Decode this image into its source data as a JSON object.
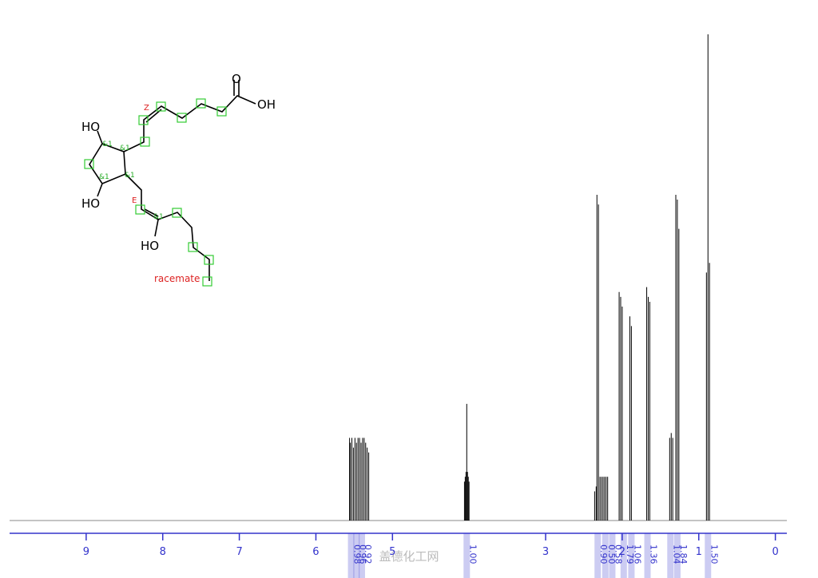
{
  "chart_data": {
    "type": "spectrum",
    "x": [
      5.56,
      5.55,
      5.53,
      5.51,
      5.49,
      5.47,
      5.45,
      5.43,
      5.41,
      5.39,
      5.37,
      5.35,
      5.33,
      5.31,
      4.06,
      4.05,
      4.04,
      4.03,
      4.02,
      4.01,
      4.0,
      2.36,
      2.34,
      2.33,
      2.31,
      2.29,
      2.27,
      2.25,
      2.23,
      2.21,
      2.19,
      2.04,
      2.02,
      2.0,
      1.9,
      1.88,
      1.68,
      1.66,
      1.64,
      1.38,
      1.36,
      1.34,
      1.3,
      1.28,
      1.26,
      0.9,
      0.88,
      0.86
    ],
    "values": [
      17,
      16,
      17,
      15,
      17,
      16,
      17,
      17,
      16,
      17,
      17,
      16,
      15,
      14,
      8,
      9,
      10,
      24,
      10,
      9,
      8,
      6,
      7,
      67,
      65,
      9,
      9,
      9,
      9,
      9,
      9,
      47,
      46,
      44,
      42,
      40,
      48,
      46,
      45,
      17,
      18,
      17,
      67,
      66,
      60,
      51,
      100,
      53
    ],
    "color": "#000000",
    "axis_color": "#3333cc",
    "xlim": [
      10,
      -0.15
    ],
    "ylim": [
      0,
      100
    ],
    "xticks": [
      9,
      8,
      7,
      6,
      5,
      3,
      2,
      1,
      0
    ],
    "integrals": {
      "x": [
        5.54,
        5.47,
        5.4,
        4.03,
        2.32,
        2.22,
        2.13,
        1.98,
        1.88,
        1.67,
        1.37,
        1.28,
        0.88
      ],
      "labels": [
        "0.98",
        "0.96",
        "0.92",
        "1.00",
        "0.90",
        "0.50",
        "0.58",
        "1.79",
        "1.06",
        "1.36",
        "1.04",
        "1.84",
        "1.50"
      ]
    }
  },
  "structure": {
    "labels": [
      "O",
      "OH",
      "HO",
      "HO",
      "HO",
      "Z",
      "E",
      "racemate",
      "&1",
      "&1",
      "&1",
      "&1",
      "&1"
    ]
  },
  "watermark": "盖德化工网"
}
